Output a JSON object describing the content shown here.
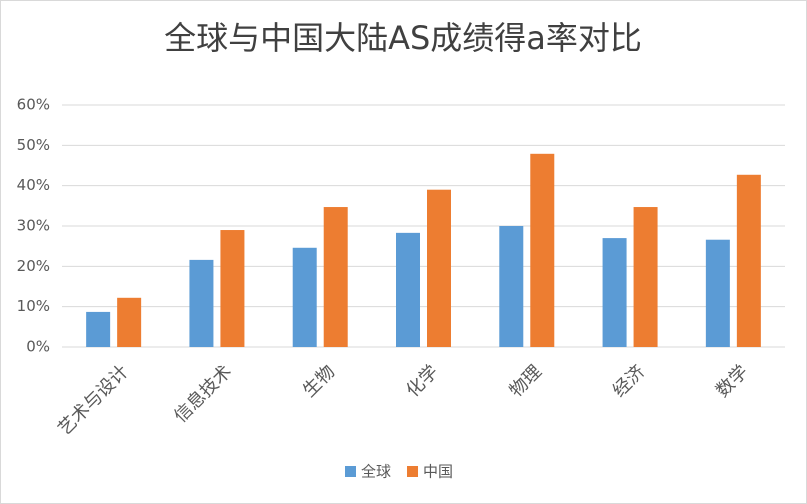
{
  "chart_data": {
    "type": "bar",
    "title": "全球与中国大陆AS成绩得a率对比",
    "categories": [
      "艺术与设计",
      "信息技术",
      "生物",
      "化学",
      "物理",
      "经济",
      "数学"
    ],
    "series": [
      {
        "name": "全球",
        "color": "#5b9bd5",
        "values": [
          8.7,
          21.6,
          24.6,
          28.3,
          30.0,
          27.0,
          26.6
        ]
      },
      {
        "name": "中国",
        "color": "#ed7d31",
        "values": [
          12.2,
          29.0,
          34.7,
          39.0,
          47.9,
          34.7,
          42.7
        ]
      }
    ],
    "ylim": [
      0,
      60
    ],
    "yticks": [
      {
        "value": 0,
        "label": "0%"
      },
      {
        "value": 10,
        "label": "10%"
      },
      {
        "value": 20,
        "label": "20%"
      },
      {
        "value": 30,
        "label": "30%"
      },
      {
        "value": 40,
        "label": "40%"
      },
      {
        "value": 50,
        "label": "50%"
      },
      {
        "value": 60,
        "label": "60%"
      }
    ],
    "grid": true,
    "legend": "bottom"
  }
}
